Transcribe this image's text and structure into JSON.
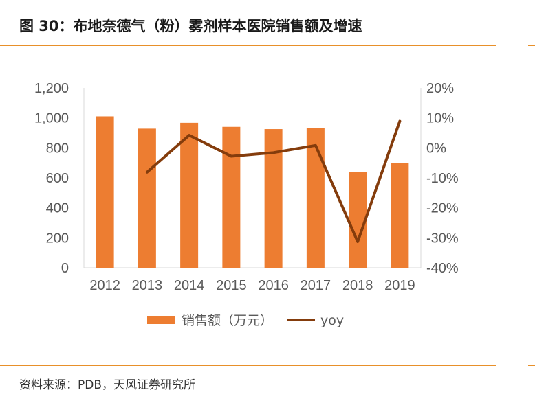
{
  "header": {
    "title": "图 30：布地奈德气（粉）雾剂样本医院销售额及增速"
  },
  "footer": {
    "source": "资料来源：PDB，天风证券研究所"
  },
  "colors": {
    "bar": "#ed7d31",
    "line": "#843c0c",
    "rule": "#e8902a",
    "axis_text": "#595959"
  },
  "chart_data": {
    "type": "bar",
    "title": "布地奈德气（粉）雾剂样本医院销售额及增速",
    "categories": [
      "2012",
      "2013",
      "2014",
      "2015",
      "2016",
      "2017",
      "2018",
      "2019"
    ],
    "series": [
      {
        "name": "销售额（万元）",
        "type": "bar",
        "axis": "left",
        "values": [
          1010,
          928,
          967,
          940,
          925,
          932,
          640,
          697
        ]
      },
      {
        "name": "yoy",
        "type": "line",
        "axis": "right",
        "values": [
          null,
          -8.1,
          4.2,
          -2.8,
          -1.6,
          0.8,
          -31.3,
          8.9
        ]
      }
    ],
    "y_left": {
      "ylim": [
        0,
        1200
      ],
      "ticks": [
        0,
        200,
        400,
        600,
        800,
        1000,
        1200
      ],
      "tick_labels": [
        "0",
        "200",
        "400",
        "600",
        "800",
        "1,000",
        "1,200"
      ]
    },
    "y_right": {
      "ylim": [
        -40,
        20
      ],
      "ticks": [
        -40,
        -30,
        -20,
        -10,
        0,
        10,
        20
      ],
      "tick_labels": [
        "-40%",
        "-30%",
        "-20%",
        "-10%",
        "0%",
        "10%",
        "20%"
      ]
    },
    "legend": {
      "position": "bottom",
      "items": [
        "销售额（万元）",
        "yoy"
      ]
    }
  }
}
